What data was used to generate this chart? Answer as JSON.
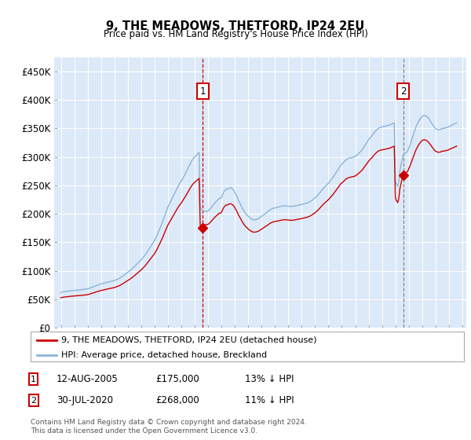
{
  "title": "9, THE MEADOWS, THETFORD, IP24 2EU",
  "subtitle": "Price paid vs. HM Land Registry's House Price Index (HPI)",
  "ylim": [
    0,
    475000
  ],
  "yticks": [
    0,
    50000,
    100000,
    150000,
    200000,
    250000,
    300000,
    350000,
    400000,
    450000
  ],
  "ytick_labels": [
    "£0",
    "£50K",
    "£100K",
    "£150K",
    "£200K",
    "£250K",
    "£300K",
    "£350K",
    "£400K",
    "£450K"
  ],
  "xlim_start": 1994.5,
  "xlim_end": 2025.3,
  "sale1_date": 2005.617,
  "sale1_price": 175000,
  "sale2_date": 2020.578,
  "sale2_price": 268000,
  "legend_property": "9, THE MEADOWS, THETFORD, IP24 2EU (detached house)",
  "legend_hpi": "HPI: Average price, detached house, Breckland",
  "footnote": "Contains HM Land Registry data © Crown copyright and database right 2024.\nThis data is licensed under the Open Government Licence v3.0.",
  "background_color": "#dce9f8",
  "grid_color": "#ffffff",
  "hpi_color": "#8ab4d8",
  "property_color": "#cc0000",
  "vline1_color": "#cc0000",
  "vline2_color": "#888888",
  "marker_box_color": "#cc0000",
  "hpi_index": [
    100.0,
    100.8,
    101.6,
    102.4,
    102.9,
    103.2,
    103.5,
    104.0,
    104.5,
    104.8,
    105.2,
    105.5,
    105.8,
    106.0,
    106.3,
    106.5,
    106.8,
    107.3,
    107.6,
    108.1,
    108.5,
    109.0,
    109.3,
    109.7,
    110.5,
    111.3,
    112.6,
    113.7,
    114.8,
    116.1,
    117.4,
    118.5,
    119.7,
    121.0,
    122.3,
    123.4,
    124.2,
    125.0,
    125.8,
    126.6,
    127.4,
    128.2,
    129.0,
    129.8,
    130.6,
    131.5,
    132.3,
    133.1,
    133.9,
    135.2,
    136.5,
    137.9,
    139.5,
    141.1,
    143.2,
    145.2,
    147.6,
    150.0,
    152.4,
    154.8,
    157.3,
    159.7,
    162.1,
    164.5,
    167.4,
    170.2,
    173.4,
    176.6,
    179.8,
    183.1,
    186.3,
    189.5,
    192.7,
    196.0,
    200.0,
    204.0,
    208.1,
    213.0,
    217.7,
    222.6,
    227.4,
    232.3,
    237.1,
    242.0,
    246.8,
    253.2,
    259.7,
    267.0,
    274.2,
    282.3,
    290.3,
    298.4,
    307.3,
    316.1,
    325.0,
    333.9,
    342.0,
    348.4,
    354.8,
    361.3,
    367.7,
    374.2,
    380.6,
    387.1,
    393.5,
    400.0,
    405.6,
    410.5,
    415.3,
    421.0,
    426.6,
    432.3,
    438.7,
    445.2,
    451.6,
    458.1,
    464.5,
    471.0,
    475.8,
    480.6,
    483.9,
    487.1,
    490.3,
    493.5,
    496.8,
    338.7,
    335.5,
    332.3,
    330.6,
    329.8,
    329.0,
    329.8,
    330.6,
    333.9,
    337.1,
    341.1,
    345.2,
    349.2,
    353.2,
    356.5,
    359.7,
    362.9,
    366.1,
    366.1,
    369.4,
    376.6,
    383.9,
    388.7,
    391.9,
    391.9,
    394.4,
    395.2,
    396.8,
    395.2,
    393.5,
    389.5,
    383.9,
    377.4,
    371.0,
    362.9,
    356.5,
    350.0,
    343.5,
    337.1,
    331.5,
    326.6,
    322.6,
    319.4,
    316.1,
    312.9,
    310.5,
    308.1,
    306.5,
    305.6,
    305.6,
    306.5,
    307.3,
    308.9,
    310.5,
    312.9,
    315.3,
    317.7,
    320.2,
    322.6,
    325.0,
    327.4,
    329.8,
    332.3,
    334.7,
    336.3,
    338.0,
    338.7,
    339.5,
    340.3,
    341.1,
    341.9,
    342.7,
    343.5,
    344.4,
    344.8,
    345.2,
    345.5,
    345.2,
    344.8,
    344.4,
    344.0,
    343.5,
    343.5,
    343.9,
    344.4,
    344.8,
    345.5,
    346.0,
    346.8,
    347.6,
    348.4,
    349.2,
    350.0,
    350.8,
    351.6,
    352.4,
    353.5,
    354.8,
    356.5,
    358.1,
    360.5,
    362.9,
    365.3,
    367.7,
    371.0,
    374.2,
    377.4,
    381.5,
    385.5,
    389.5,
    393.5,
    396.8,
    400.0,
    403.2,
    406.5,
    409.7,
    413.7,
    417.7,
    421.8,
    425.8,
    430.6,
    435.5,
    440.3,
    445.2,
    450.0,
    455.2,
    460.5,
    462.9,
    466.1,
    469.4,
    473.4,
    475.8,
    478.2,
    479.8,
    480.6,
    481.5,
    482.3,
    483.1,
    483.9,
    485.5,
    487.9,
    490.3,
    493.5,
    496.8,
    500.0,
    503.2,
    508.1,
    513.0,
    517.7,
    522.6,
    527.4,
    532.3,
    537.1,
    540.3,
    543.5,
    548.4,
    552.4,
    556.5,
    559.7,
    563.0,
    565.3,
    566.9,
    567.7,
    568.5,
    569.4,
    570.2,
    571.0,
    571.8,
    572.6,
    573.4,
    574.2,
    575.8,
    577.4,
    579.0,
    580.6,
    416.1,
    406.5,
    400.0,
    411.3,
    443.5,
    459.7,
    475.8,
    488.7,
    491.9,
    495.2,
    496.8,
    500.0,
    508.1,
    516.1,
    525.8,
    535.5,
    545.2,
    554.8,
    564.5,
    572.6,
    579.0,
    585.5,
    590.3,
    595.2,
    598.4,
    600.0,
    600.8,
    600.0,
    598.4,
    596.0,
    591.9,
    587.1,
    582.3,
    577.4,
    572.6,
    567.7,
    564.5,
    562.9,
    561.3,
    561.3,
    561.3,
    562.9,
    564.5,
    564.5,
    565.3,
    566.1,
    566.9,
    567.7,
    569.4,
    571.0,
    572.6,
    574.2,
    575.8,
    577.4,
    579.0,
    580.6
  ],
  "hpi_data_x": [
    1995.0,
    1995.083,
    1995.167,
    1995.25,
    1995.333,
    1995.417,
    1995.5,
    1995.583,
    1995.667,
    1995.75,
    1995.833,
    1995.917,
    1996.0,
    1996.083,
    1996.167,
    1996.25,
    1996.333,
    1996.417,
    1996.5,
    1996.583,
    1996.667,
    1996.75,
    1996.833,
    1996.917,
    1997.0,
    1997.083,
    1997.167,
    1997.25,
    1997.333,
    1997.417,
    1997.5,
    1997.583,
    1997.667,
    1997.75,
    1997.833,
    1997.917,
    1998.0,
    1998.083,
    1998.167,
    1998.25,
    1998.333,
    1998.417,
    1998.5,
    1998.583,
    1998.667,
    1998.75,
    1998.833,
    1998.917,
    1999.0,
    1999.083,
    1999.167,
    1999.25,
    1999.333,
    1999.417,
    1999.5,
    1999.583,
    1999.667,
    1999.75,
    1999.833,
    1999.917,
    2000.0,
    2000.083,
    2000.167,
    2000.25,
    2000.333,
    2000.417,
    2000.5,
    2000.583,
    2000.667,
    2000.75,
    2000.833,
    2000.917,
    2001.0,
    2001.083,
    2001.167,
    2001.25,
    2001.333,
    2001.417,
    2001.5,
    2001.583,
    2001.667,
    2001.75,
    2001.833,
    2001.917,
    2002.0,
    2002.083,
    2002.167,
    2002.25,
    2002.333,
    2002.417,
    2002.5,
    2002.583,
    2002.667,
    2002.75,
    2002.833,
    2002.917,
    2003.0,
    2003.083,
    2003.167,
    2003.25,
    2003.333,
    2003.417,
    2003.5,
    2003.583,
    2003.667,
    2003.75,
    2003.833,
    2003.917,
    2004.0,
    2004.083,
    2004.167,
    2004.25,
    2004.333,
    2004.417,
    2004.5,
    2004.583,
    2004.667,
    2004.75,
    2004.833,
    2004.917,
    2005.0,
    2005.083,
    2005.167,
    2005.25,
    2005.333,
    2005.417,
    2005.5,
    2005.583,
    2005.667,
    2005.75,
    2005.833,
    2005.917,
    2006.0,
    2006.083,
    2006.167,
    2006.25,
    2006.333,
    2006.417,
    2006.5,
    2006.583,
    2006.667,
    2006.75,
    2006.833,
    2006.917,
    2007.0,
    2007.083,
    2007.167,
    2007.25,
    2007.333,
    2007.417,
    2007.5,
    2007.583,
    2007.667,
    2007.75,
    2007.833,
    2007.917,
    2008.0,
    2008.083,
    2008.167,
    2008.25,
    2008.333,
    2008.417,
    2008.5,
    2008.583,
    2008.667,
    2008.75,
    2008.833,
    2008.917,
    2009.0,
    2009.083,
    2009.167,
    2009.25,
    2009.333,
    2009.417,
    2009.5,
    2009.583,
    2009.667,
    2009.75,
    2009.833,
    2009.917,
    2010.0,
    2010.083,
    2010.167,
    2010.25,
    2010.333,
    2010.417,
    2010.5,
    2010.583,
    2010.667,
    2010.75,
    2010.833,
    2010.917,
    2011.0,
    2011.083,
    2011.167,
    2011.25,
    2011.333,
    2011.417,
    2011.5,
    2011.583,
    2011.667,
    2011.75,
    2011.833,
    2011.917,
    2012.0,
    2012.083,
    2012.167,
    2012.25,
    2012.333,
    2012.417,
    2012.5,
    2012.583,
    2012.667,
    2012.75,
    2012.833,
    2012.917,
    2013.0,
    2013.083,
    2013.167,
    2013.25,
    2013.333,
    2013.417,
    2013.5,
    2013.583,
    2013.667,
    2013.75,
    2013.833,
    2013.917,
    2014.0,
    2014.083,
    2014.167,
    2014.25,
    2014.333,
    2014.417,
    2014.5,
    2014.583,
    2014.667,
    2014.75,
    2014.833,
    2014.917,
    2015.0,
    2015.083,
    2015.167,
    2015.25,
    2015.333,
    2015.417,
    2015.5,
    2015.583,
    2015.667,
    2015.75,
    2015.833,
    2015.917,
    2016.0,
    2016.083,
    2016.167,
    2016.25,
    2016.333,
    2016.417,
    2016.5,
    2016.583,
    2016.667,
    2016.75,
    2016.833,
    2016.917,
    2017.0,
    2017.083,
    2017.167,
    2017.25,
    2017.333,
    2017.417,
    2017.5,
    2017.583,
    2017.667,
    2017.75,
    2017.833,
    2017.917,
    2018.0,
    2018.083,
    2018.167,
    2018.25,
    2018.333,
    2018.417,
    2018.5,
    2018.583,
    2018.667,
    2018.75,
    2018.833,
    2018.917,
    2019.0,
    2019.083,
    2019.167,
    2019.25,
    2019.333,
    2019.417,
    2019.5,
    2019.583,
    2019.667,
    2019.75,
    2019.833,
    2019.917,
    2020.0,
    2020.083,
    2020.167,
    2020.25,
    2020.333,
    2020.417,
    2020.5,
    2020.583,
    2020.667,
    2020.75,
    2020.833,
    2020.917,
    2021.0,
    2021.083,
    2021.167,
    2021.25,
    2021.333,
    2021.417,
    2021.5,
    2021.583,
    2021.667,
    2021.75,
    2021.833,
    2021.917,
    2022.0,
    2022.083,
    2022.167,
    2022.25,
    2022.333,
    2022.417,
    2022.5,
    2022.583,
    2022.667,
    2022.75,
    2022.833,
    2022.917,
    2023.0,
    2023.083,
    2023.167,
    2023.25,
    2023.333,
    2023.417,
    2023.5,
    2023.583,
    2023.667,
    2023.75,
    2023.833,
    2023.917,
    2024.0,
    2024.083,
    2024.167,
    2024.25,
    2024.333,
    2024.417,
    2024.5,
    2024.583
  ]
}
